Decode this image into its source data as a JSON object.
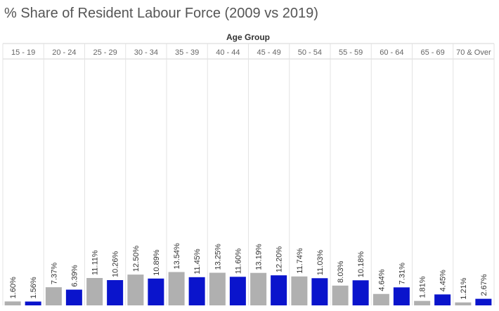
{
  "chart_data": {
    "type": "bar",
    "title": "% Share of Resident Labour Force (2009 vs 2019)",
    "column_header": "Age Group",
    "categories": [
      "15 - 19",
      "20 - 24",
      "25 - 29",
      "30 - 34",
      "35 - 39",
      "40 - 44",
      "45 - 49",
      "50 - 54",
      "55 - 59",
      "60 - 64",
      "65 - 69",
      "70 & Over"
    ],
    "series": [
      {
        "color": "#b0b0b0",
        "values": [
          1.6,
          7.37,
          11.11,
          12.5,
          13.54,
          13.25,
          13.19,
          11.74,
          8.03,
          4.64,
          1.81,
          1.21
        ],
        "labels": [
          "1.60%",
          "7.37%",
          "11.11%",
          "12.50%",
          "13.54%",
          "13.25%",
          "13.19%",
          "11.74%",
          "8.03%",
          "4.64%",
          "1.81%",
          "1.21%"
        ]
      },
      {
        "color": "#0a14cc",
        "values": [
          1.56,
          6.39,
          10.26,
          10.89,
          11.45,
          11.6,
          12.2,
          11.03,
          10.18,
          7.31,
          4.45,
          2.67
        ],
        "labels": [
          "1.56%",
          "6.39%",
          "10.26%",
          "10.89%",
          "11.45%",
          "11.60%",
          "12.20%",
          "11.03%",
          "10.18%",
          "7.31%",
          "4.45%",
          "2.67%"
        ]
      }
    ],
    "ylim": [
      0,
      100
    ],
    "grid": false
  }
}
